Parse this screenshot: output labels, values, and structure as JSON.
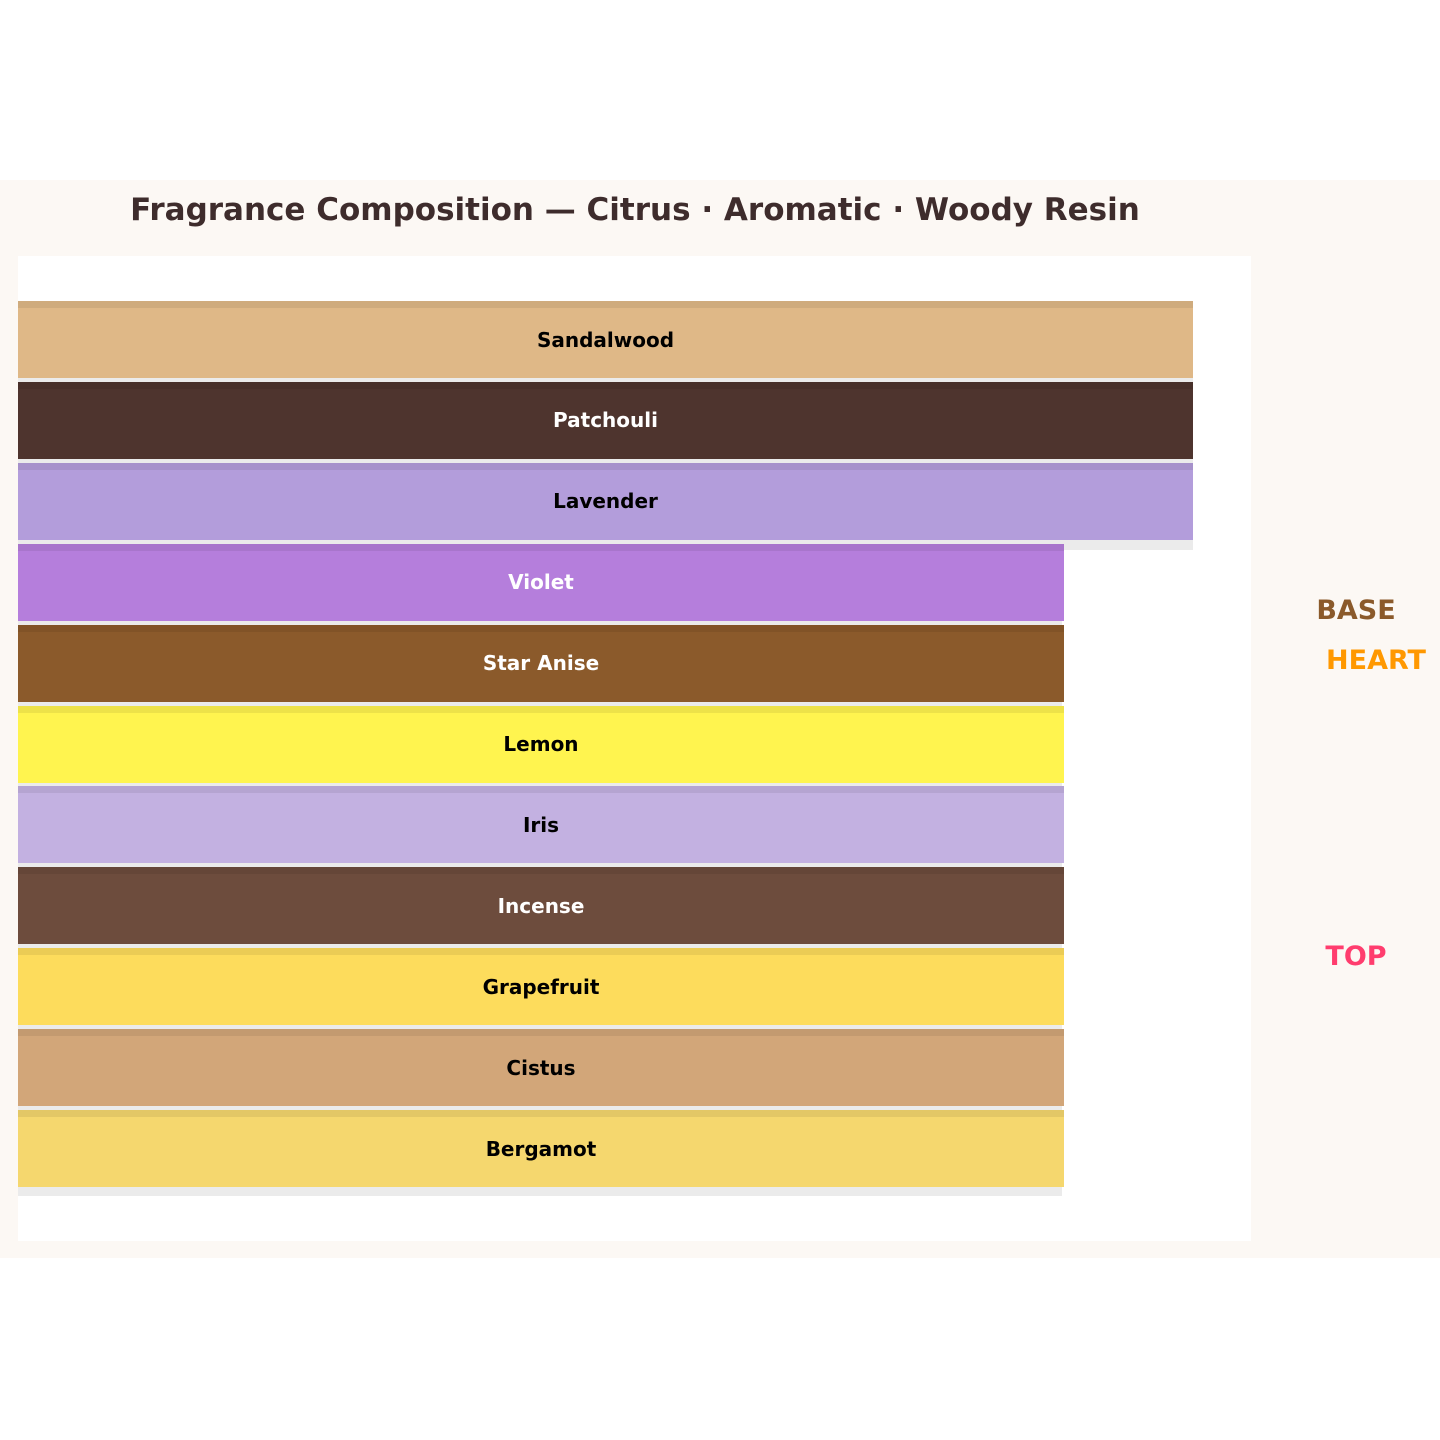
{
  "title": "Fragrance Composition — Citrus · Aromatic · Woody Resin",
  "chart_data": {
    "type": "bar",
    "orientation": "horizontal",
    "title": "Fragrance Composition — Citrus · Aromatic · Woody Resin",
    "axes_visible": false,
    "grid": false,
    "notes": [
      {
        "label": "Sandalwood",
        "relative_width": 1.0,
        "color": "#dfb887",
        "text_color": "#000000"
      },
      {
        "label": "Patchouli",
        "relative_width": 1.0,
        "color": "#4e342e",
        "text_color": "#ffffff"
      },
      {
        "label": "Lavender",
        "relative_width": 1.0,
        "color": "#b39ddb",
        "text_color": "#000000"
      },
      {
        "label": "Violet",
        "relative_width": 0.89,
        "color": "#b57edc",
        "text_color": "#ffffff"
      },
      {
        "label": "Star Anise",
        "relative_width": 0.89,
        "color": "#8b5a2b",
        "text_color": "#ffffff"
      },
      {
        "label": "Lemon",
        "relative_width": 0.89,
        "color": "#fff44f",
        "text_color": "#000000"
      },
      {
        "label": "Iris",
        "relative_width": 0.89,
        "color": "#c3b1e1",
        "text_color": "#000000"
      },
      {
        "label": "Incense",
        "relative_width": 0.89,
        "color": "#6d4c3d",
        "text_color": "#ffffff"
      },
      {
        "label": "Grapefruit",
        "relative_width": 0.89,
        "color": "#fddc5c",
        "text_color": "#000000"
      },
      {
        "label": "Cistus",
        "relative_width": 0.89,
        "color": "#d2a679",
        "text_color": "#000000"
      },
      {
        "label": "Bergamot",
        "relative_width": 0.89,
        "color": "#f5d76e",
        "text_color": "#000000"
      }
    ],
    "tier_labels": [
      {
        "label": "BASE",
        "color": "#8b5a2b"
      },
      {
        "label": "HEART",
        "color": "#ff9800"
      },
      {
        "label": "TOP",
        "color": "#ff3d6e"
      }
    ]
  }
}
